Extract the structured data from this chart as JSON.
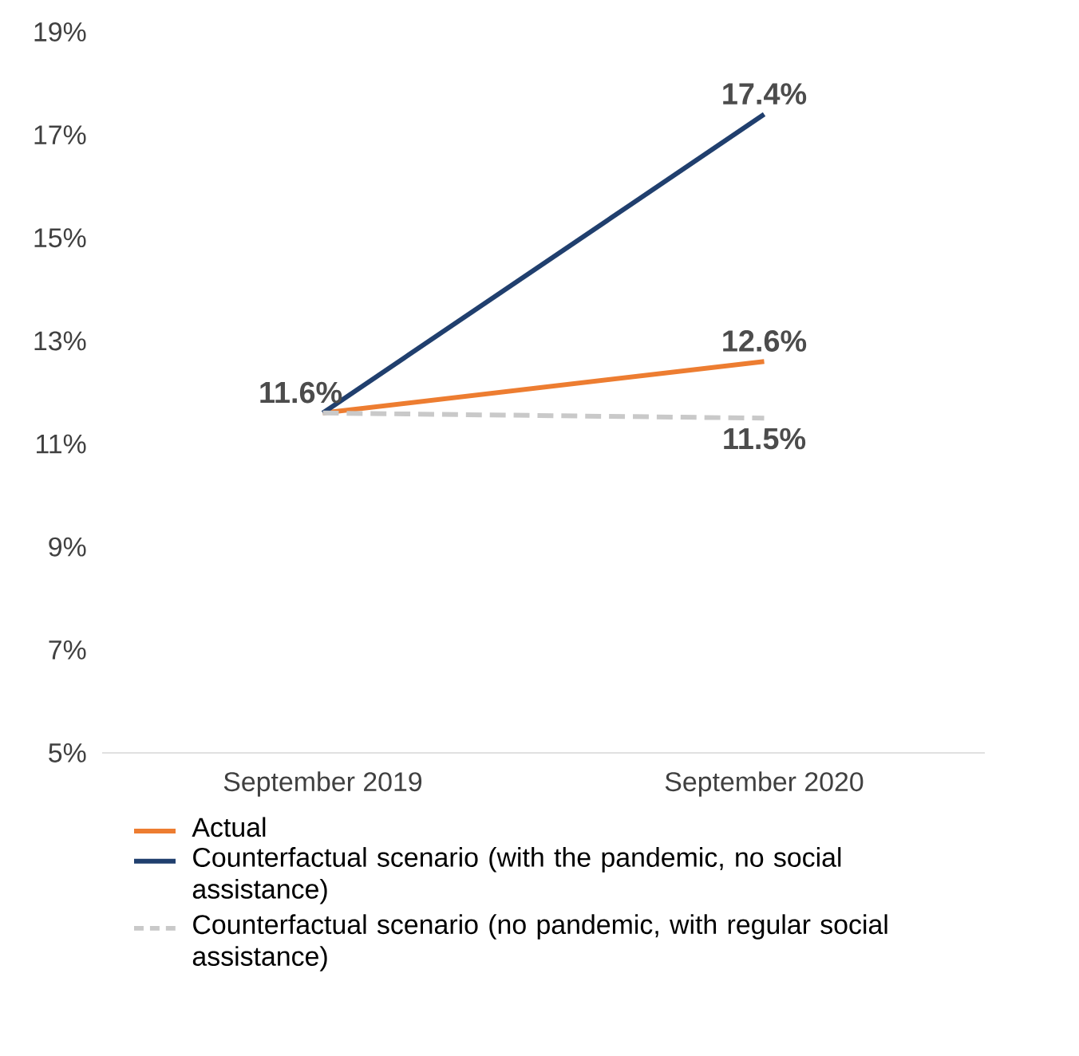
{
  "chart_data": {
    "type": "line",
    "categories": [
      "September 2019",
      "September 2020"
    ],
    "series": [
      {
        "name": "Actual",
        "color": "#ed7d31",
        "values": [
          11.6,
          12.6
        ],
        "value_labels": [
          null,
          "12.6%"
        ]
      },
      {
        "name": "Counterfactual scenario (with the pandemic, no social assistance)",
        "color": "#203f6e",
        "values": [
          11.6,
          17.4
        ],
        "value_labels": [
          "11.6%",
          "17.4%"
        ]
      },
      {
        "name": "Counterfactual scenario (no pandemic, with regular social assistance)",
        "color": "#c9c9c9",
        "values": [
          11.6,
          11.5
        ],
        "value_labels": [
          null,
          "11.5%"
        ],
        "line_style": "dashed"
      }
    ],
    "ylim": [
      5,
      19
    ],
    "yticks": [
      {
        "value": 5,
        "label": "5%"
      },
      {
        "value": 7,
        "label": "7%"
      },
      {
        "value": 9,
        "label": "9%"
      },
      {
        "value": 11,
        "label": "11%"
      },
      {
        "value": 13,
        "label": "13%"
      },
      {
        "value": 15,
        "label": "15%"
      },
      {
        "value": 17,
        "label": "17%"
      },
      {
        "value": 19,
        "label": "19%"
      }
    ],
    "grid": false,
    "legend": "bottom",
    "marker": "none"
  }
}
